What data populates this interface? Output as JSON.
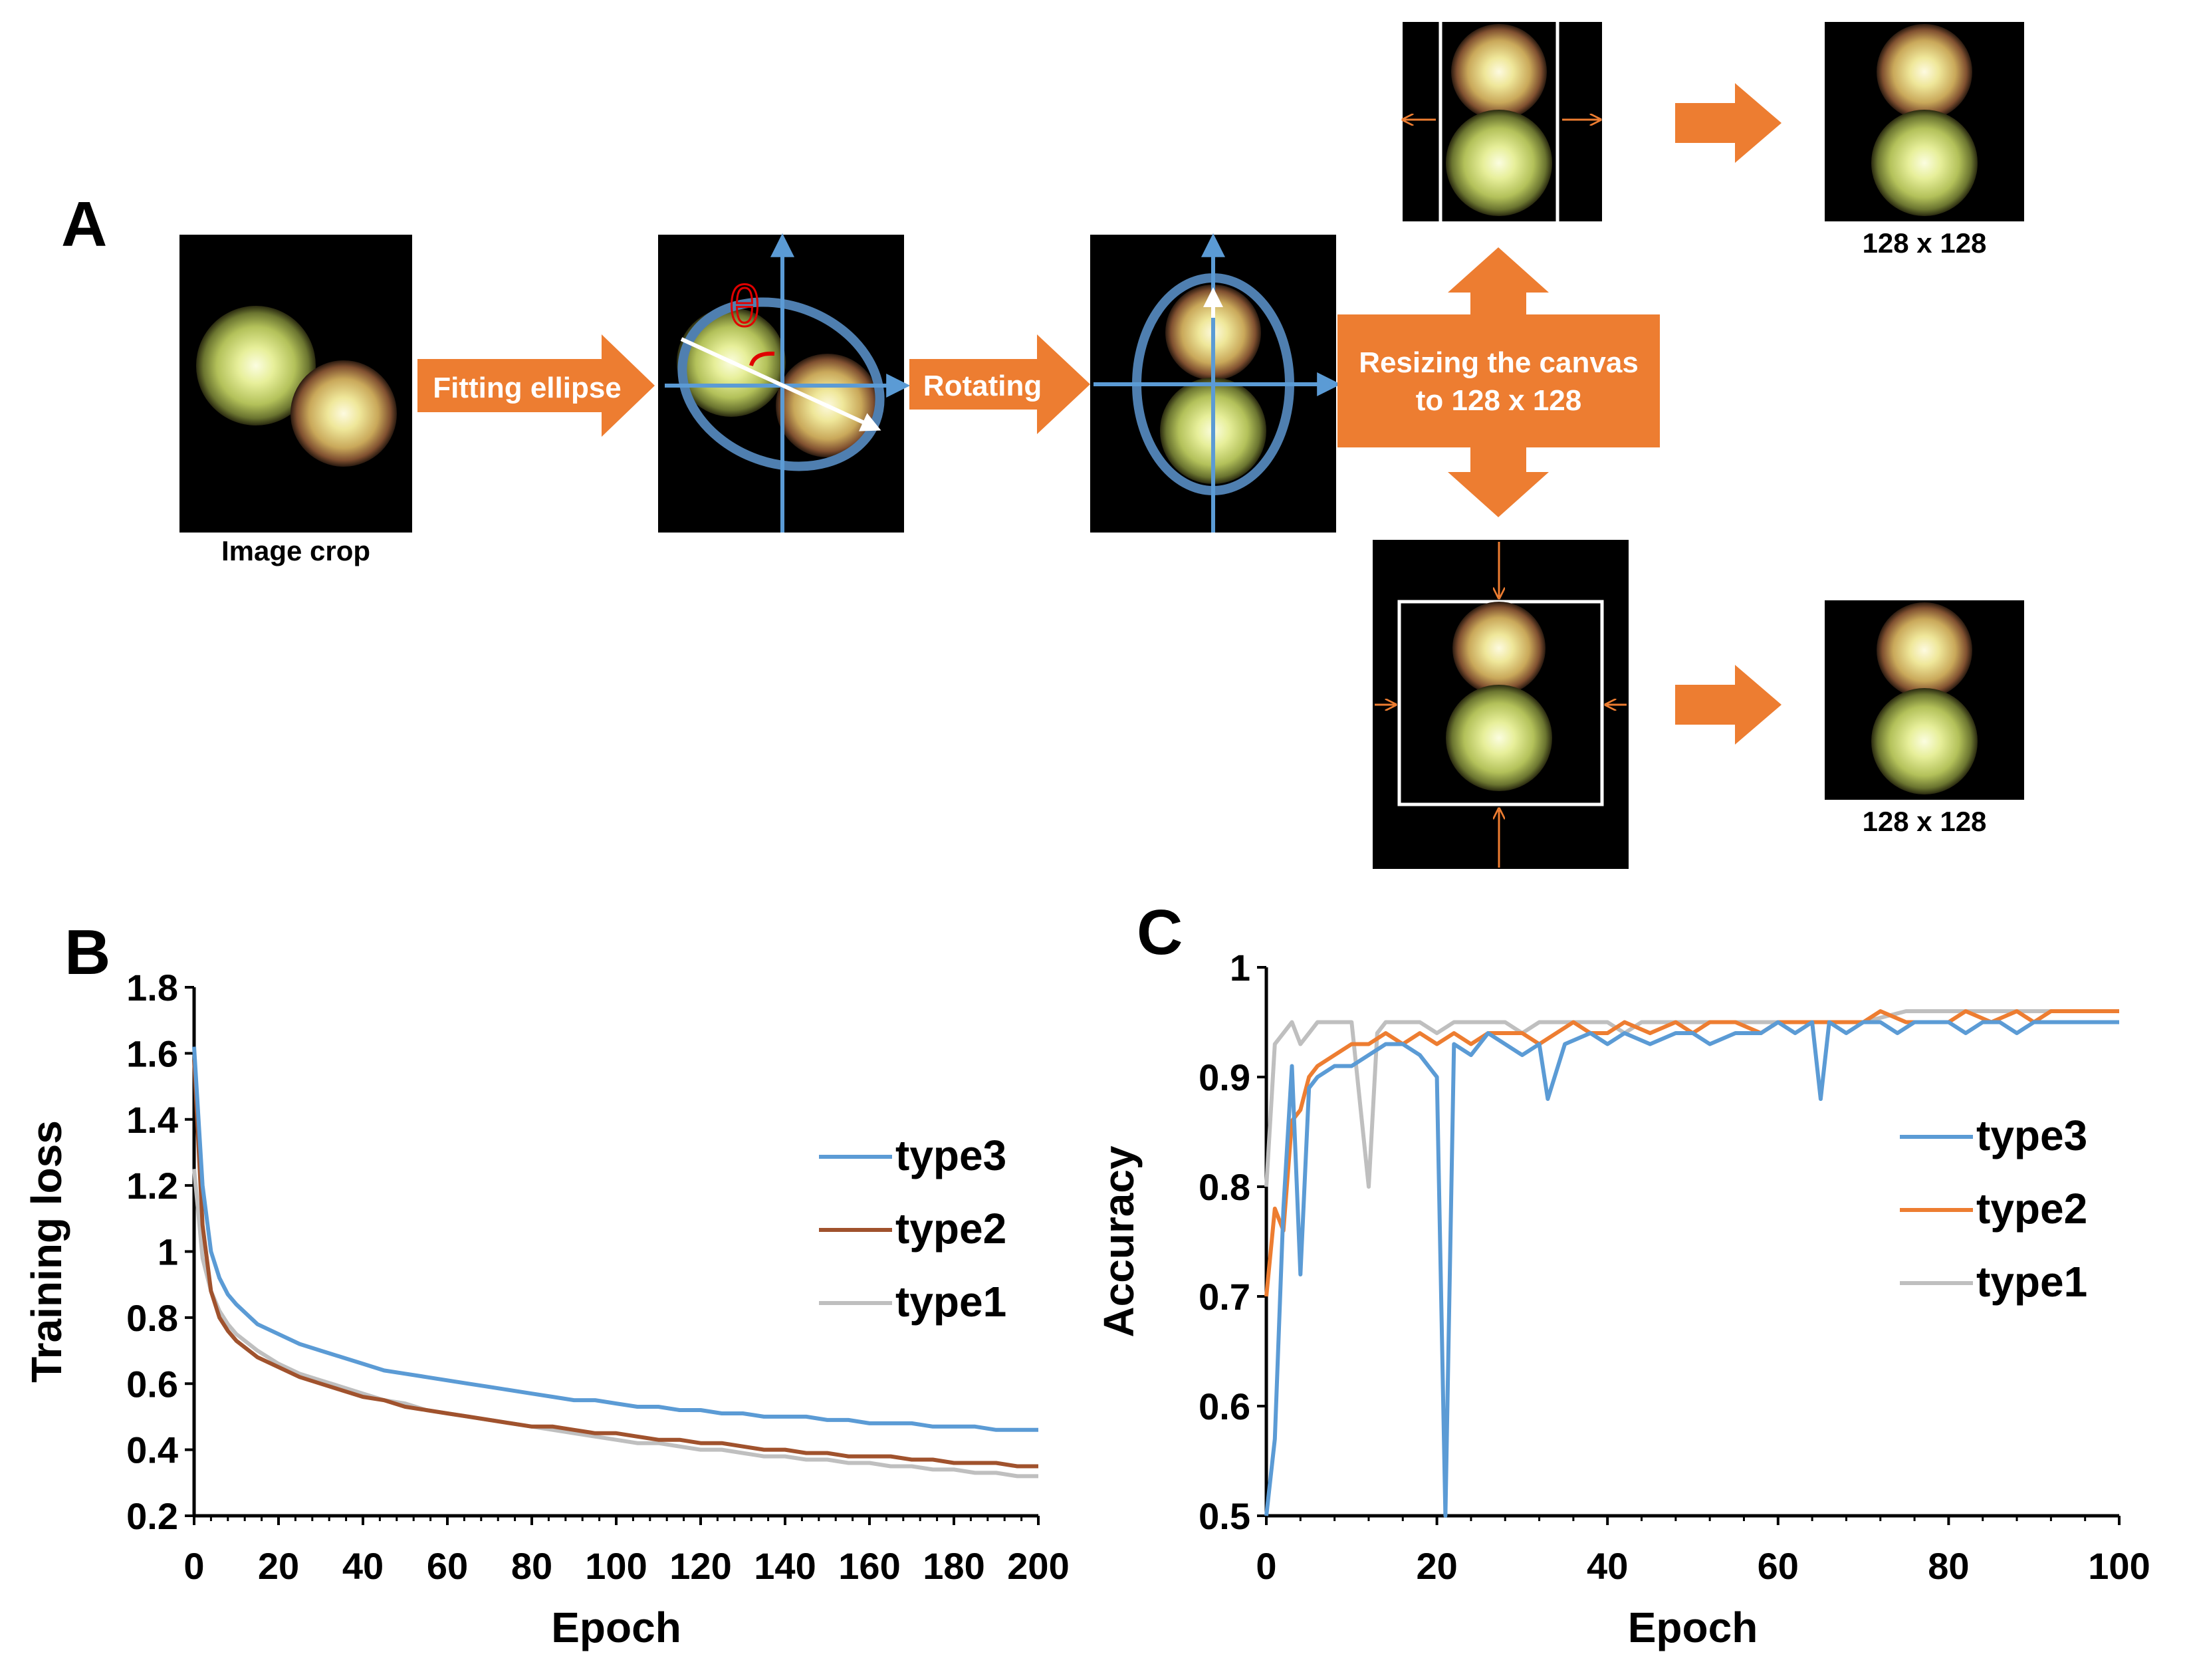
{
  "panelA": {
    "letter": "A",
    "labels": {
      "image_crop": "Image crop",
      "fitting_ellipse": "Fitting ellipse",
      "rotating": "Rotating",
      "resizing_line1": "Resizing the canvas",
      "resizing_line2": "to 128 x 128",
      "size_top": "128 x 128",
      "size_bottom": "128 x 128",
      "theta": "θ"
    },
    "colors": {
      "arrow": "#ED7D31",
      "axis": "#5B9BD5",
      "ellipse": "#4F7FB0",
      "theta": "#E00000"
    }
  },
  "chart_data": [
    {
      "panel": "B",
      "type": "line",
      "ylabel": "Training loss",
      "xlabel": "Epoch",
      "xlim": [
        0,
        200
      ],
      "ylim": [
        0.2,
        1.8
      ],
      "xticks": [
        "0",
        "20",
        "40",
        "60",
        "80",
        "100",
        "120",
        "140",
        "160",
        "180",
        "200"
      ],
      "yticks": [
        "0.2",
        "0.4",
        "0.6",
        "0.8",
        "1",
        "1.2",
        "1.4",
        "1.6",
        "1.8"
      ],
      "legend_position": "right",
      "series": [
        {
          "name": "type3",
          "color": "#5B9BD5",
          "x": [
            0,
            2,
            4,
            6,
            8,
            10,
            15,
            20,
            25,
            30,
            35,
            40,
            45,
            50,
            55,
            60,
            65,
            70,
            75,
            80,
            85,
            90,
            95,
            100,
            105,
            110,
            115,
            120,
            125,
            130,
            135,
            140,
            145,
            150,
            155,
            160,
            165,
            170,
            175,
            180,
            185,
            190,
            195,
            200
          ],
          "values": [
            1.62,
            1.2,
            1.0,
            0.92,
            0.87,
            0.84,
            0.78,
            0.75,
            0.72,
            0.7,
            0.68,
            0.66,
            0.64,
            0.63,
            0.62,
            0.61,
            0.6,
            0.59,
            0.58,
            0.57,
            0.56,
            0.55,
            0.55,
            0.54,
            0.53,
            0.53,
            0.52,
            0.52,
            0.51,
            0.51,
            0.5,
            0.5,
            0.5,
            0.49,
            0.49,
            0.48,
            0.48,
            0.48,
            0.47,
            0.47,
            0.47,
            0.46,
            0.46,
            0.46
          ]
        },
        {
          "name": "type2",
          "color": "#A0522D",
          "x": [
            0,
            2,
            4,
            6,
            8,
            10,
            15,
            20,
            25,
            30,
            35,
            40,
            45,
            50,
            55,
            60,
            65,
            70,
            75,
            80,
            85,
            90,
            95,
            100,
            105,
            110,
            115,
            120,
            125,
            130,
            135,
            140,
            145,
            150,
            155,
            160,
            165,
            170,
            175,
            180,
            185,
            190,
            195,
            200
          ],
          "values": [
            1.58,
            1.08,
            0.88,
            0.8,
            0.76,
            0.73,
            0.68,
            0.65,
            0.62,
            0.6,
            0.58,
            0.56,
            0.55,
            0.53,
            0.52,
            0.51,
            0.5,
            0.49,
            0.48,
            0.47,
            0.47,
            0.46,
            0.45,
            0.45,
            0.44,
            0.43,
            0.43,
            0.42,
            0.42,
            0.41,
            0.4,
            0.4,
            0.39,
            0.39,
            0.38,
            0.38,
            0.38,
            0.37,
            0.37,
            0.36,
            0.36,
            0.36,
            0.35,
            0.35
          ]
        },
        {
          "name": "type1",
          "color": "#BFBFBF",
          "x": [
            0,
            2,
            4,
            6,
            8,
            10,
            15,
            20,
            25,
            30,
            35,
            40,
            45,
            50,
            55,
            60,
            65,
            70,
            75,
            80,
            85,
            90,
            95,
            100,
            105,
            110,
            115,
            120,
            125,
            130,
            135,
            140,
            145,
            150,
            155,
            160,
            165,
            170,
            175,
            180,
            185,
            190,
            195,
            200
          ],
          "values": [
            1.25,
            0.98,
            0.88,
            0.82,
            0.78,
            0.75,
            0.7,
            0.66,
            0.63,
            0.61,
            0.59,
            0.57,
            0.55,
            0.54,
            0.52,
            0.51,
            0.5,
            0.49,
            0.48,
            0.47,
            0.46,
            0.45,
            0.44,
            0.43,
            0.42,
            0.42,
            0.41,
            0.4,
            0.4,
            0.39,
            0.38,
            0.38,
            0.37,
            0.37,
            0.36,
            0.36,
            0.35,
            0.35,
            0.34,
            0.34,
            0.33,
            0.33,
            0.32,
            0.32
          ]
        }
      ]
    },
    {
      "panel": "C",
      "type": "line",
      "ylabel": "Accuracy",
      "xlabel": "Epoch",
      "xlim": [
        0,
        100
      ],
      "ylim": [
        0.5,
        1
      ],
      "xticks": [
        "0",
        "20",
        "40",
        "60",
        "80",
        "100"
      ],
      "yticks": [
        "0.5",
        "0.6",
        "0.7",
        "0.8",
        "0.9",
        "1"
      ],
      "legend_position": "right",
      "series": [
        {
          "name": "type3",
          "color": "#5B9BD5",
          "x": [
            0,
            1,
            2,
            3,
            4,
            5,
            6,
            8,
            10,
            12,
            14,
            16,
            18,
            20,
            21,
            22,
            24,
            26,
            28,
            30,
            32,
            33,
            35,
            38,
            40,
            42,
            45,
            48,
            50,
            52,
            55,
            58,
            60,
            62,
            64,
            65,
            66,
            68,
            70,
            72,
            74,
            76,
            78,
            80,
            82,
            84,
            86,
            88,
            90,
            92,
            94,
            96,
            98,
            100
          ],
          "values": [
            0.5,
            0.57,
            0.78,
            0.91,
            0.72,
            0.89,
            0.9,
            0.91,
            0.91,
            0.92,
            0.93,
            0.93,
            0.92,
            0.9,
            0.5,
            0.93,
            0.92,
            0.94,
            0.93,
            0.92,
            0.93,
            0.88,
            0.93,
            0.94,
            0.93,
            0.94,
            0.93,
            0.94,
            0.94,
            0.93,
            0.94,
            0.94,
            0.95,
            0.94,
            0.95,
            0.88,
            0.95,
            0.94,
            0.95,
            0.95,
            0.94,
            0.95,
            0.95,
            0.95,
            0.94,
            0.95,
            0.95,
            0.94,
            0.95,
            0.95,
            0.95,
            0.95,
            0.95,
            0.95
          ]
        },
        {
          "name": "type2",
          "color": "#ED7D31",
          "x": [
            0,
            1,
            2,
            3,
            4,
            5,
            6,
            8,
            10,
            12,
            14,
            16,
            18,
            20,
            22,
            24,
            26,
            28,
            30,
            32,
            34,
            36,
            38,
            40,
            42,
            45,
            48,
            50,
            52,
            55,
            58,
            60,
            62,
            65,
            68,
            70,
            72,
            75,
            78,
            80,
            82,
            85,
            88,
            90,
            92,
            95,
            98,
            100
          ],
          "values": [
            0.7,
            0.78,
            0.76,
            0.86,
            0.87,
            0.9,
            0.91,
            0.92,
            0.93,
            0.93,
            0.94,
            0.93,
            0.94,
            0.93,
            0.94,
            0.93,
            0.94,
            0.94,
            0.94,
            0.93,
            0.94,
            0.95,
            0.94,
            0.94,
            0.95,
            0.94,
            0.95,
            0.94,
            0.95,
            0.95,
            0.94,
            0.95,
            0.95,
            0.95,
            0.95,
            0.95,
            0.96,
            0.95,
            0.95,
            0.95,
            0.96,
            0.95,
            0.96,
            0.95,
            0.96,
            0.96,
            0.96,
            0.96
          ]
        },
        {
          "name": "type1",
          "color": "#BFBFBF",
          "x": [
            0,
            1,
            2,
            3,
            4,
            5,
            6,
            8,
            10,
            12,
            13,
            14,
            16,
            18,
            20,
            22,
            24,
            26,
            28,
            30,
            32,
            34,
            36,
            38,
            40,
            42,
            44,
            46,
            48,
            50,
            55,
            60,
            65,
            70,
            75,
            80,
            85,
            90,
            95,
            100
          ],
          "values": [
            0.8,
            0.93,
            0.94,
            0.95,
            0.93,
            0.94,
            0.95,
            0.95,
            0.95,
            0.8,
            0.94,
            0.95,
            0.95,
            0.95,
            0.94,
            0.95,
            0.95,
            0.95,
            0.95,
            0.94,
            0.95,
            0.95,
            0.95,
            0.95,
            0.95,
            0.94,
            0.95,
            0.95,
            0.95,
            0.95,
            0.95,
            0.95,
            0.95,
            0.95,
            0.96,
            0.96,
            0.96,
            0.96,
            0.96,
            0.96
          ]
        }
      ]
    }
  ]
}
